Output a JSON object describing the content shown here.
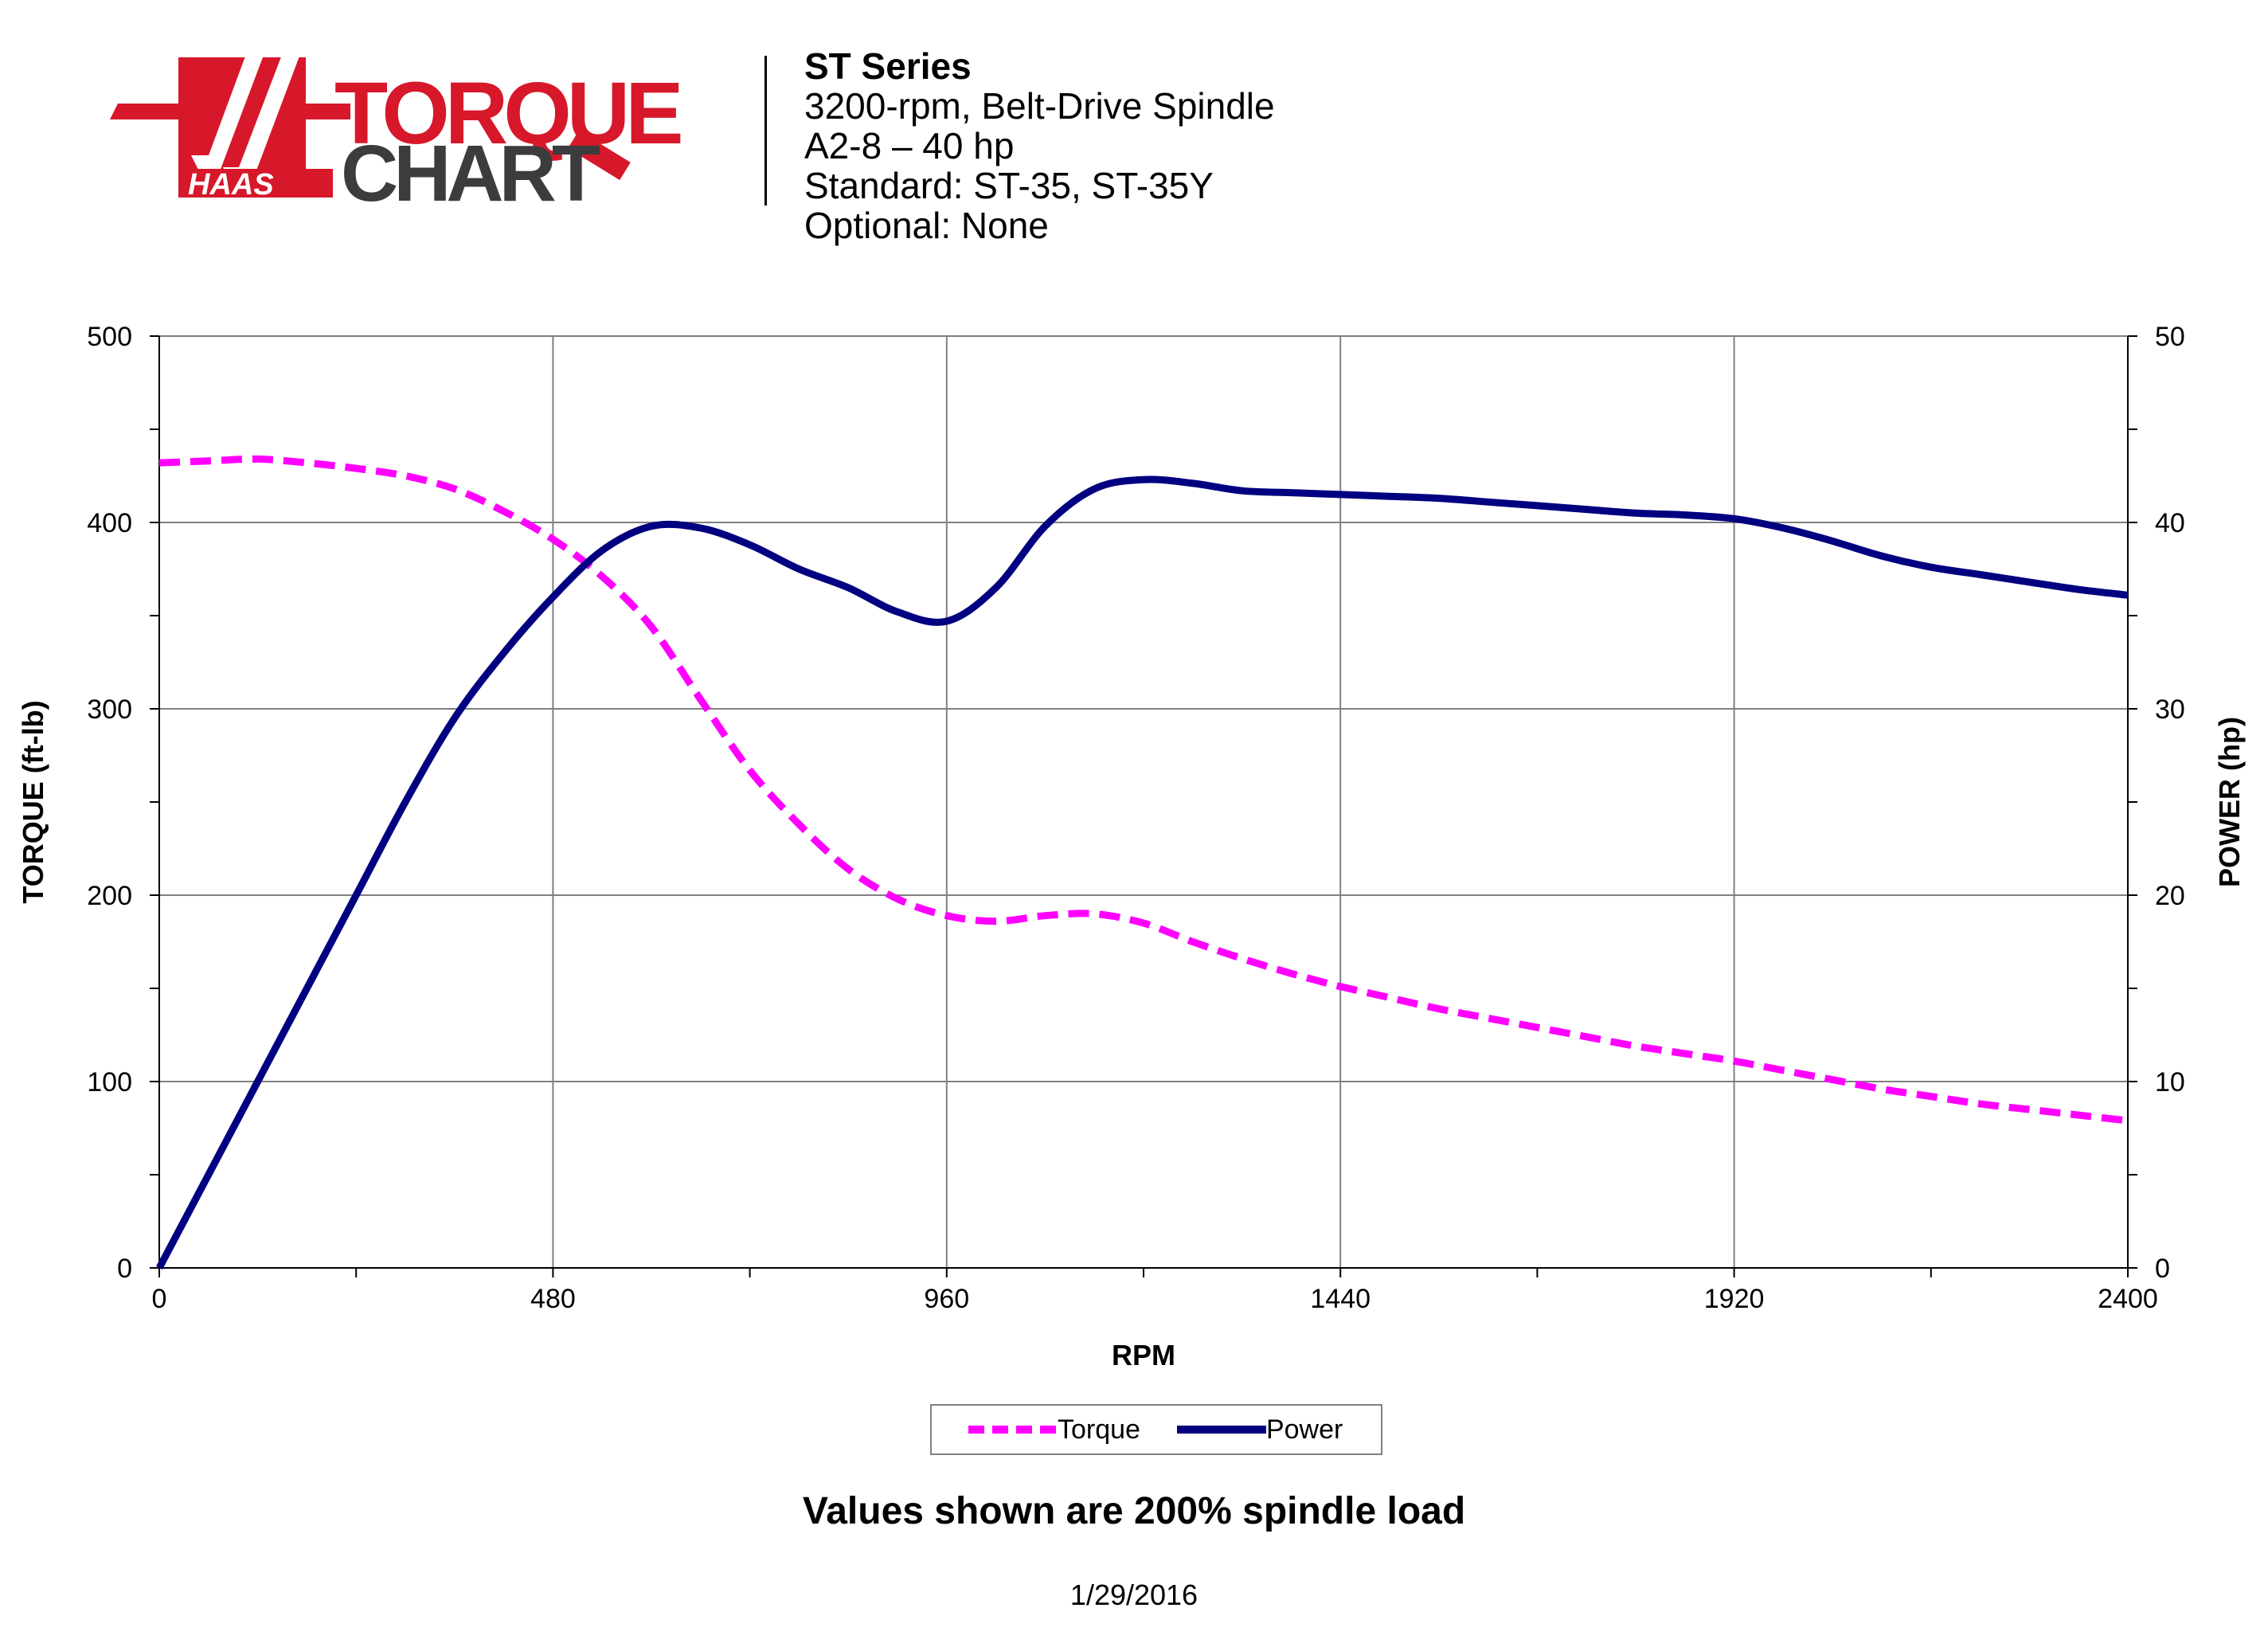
{
  "header": {
    "logo_text": "HAAS TORQUE CHART",
    "series": "ST Series",
    "lines": [
      "3200-rpm, Belt-Drive Spindle",
      "A2-8 – 40 hp",
      "Standard: ST-35, ST-35Y",
      "Optional: None"
    ]
  },
  "footnote": "Values shown are 200% spindle load",
  "date": "1/29/2016",
  "colors": {
    "torque": "#ff00ff",
    "power": "#000080",
    "logo_red": "#d7182a",
    "logo_dark": "#3c3c3e",
    "grid": "#808080"
  },
  "chart_data": {
    "type": "line",
    "xlabel": "RPM",
    "ylabel": "TORQUE (ft-lb)",
    "y2label": "POWER (hp)",
    "xlim": [
      0,
      2400
    ],
    "ylim": [
      0,
      500
    ],
    "y2lim": [
      0,
      50
    ],
    "xticks": [
      0,
      480,
      960,
      1440,
      1920,
      2400
    ],
    "yticks": [
      0,
      100,
      200,
      300,
      400,
      500
    ],
    "y2ticks": [
      0,
      10,
      20,
      30,
      40,
      50
    ],
    "grid": true,
    "legend": "bottom-center",
    "series": [
      {
        "name": "Torque",
        "axis": "left",
        "style": "dashed",
        "x": [
          0,
          60,
          120,
          180,
          240,
          300,
          360,
          420,
          480,
          540,
          600,
          660,
          720,
          780,
          840,
          900,
          960,
          1020,
          1080,
          1140,
          1200,
          1260,
          1320,
          1380,
          1440,
          1500,
          1560,
          1620,
          1680,
          1740,
          1800,
          1860,
          1920,
          1980,
          2040,
          2100,
          2160,
          2220,
          2280,
          2340,
          2400
        ],
        "values": [
          432,
          433,
          434,
          432,
          429,
          425,
          418,
          406,
          391,
          371,
          344,
          305,
          267,
          238,
          214,
          198,
          189,
          186,
          189,
          190,
          185,
          175,
          166,
          158,
          151,
          145,
          139,
          134,
          129,
          124,
          119,
          115,
          111,
          106,
          101,
          96,
          92,
          88,
          85,
          82,
          79
        ]
      },
      {
        "name": "Power",
        "axis": "right",
        "style": "solid",
        "x": [
          0,
          60,
          120,
          180,
          240,
          300,
          360,
          420,
          480,
          540,
          600,
          660,
          720,
          780,
          840,
          900,
          960,
          1020,
          1080,
          1140,
          1200,
          1260,
          1320,
          1380,
          1440,
          1500,
          1560,
          1620,
          1680,
          1740,
          1800,
          1860,
          1920,
          1980,
          2040,
          2100,
          2160,
          2220,
          2280,
          2340,
          2400
        ],
        "values": [
          0,
          5,
          10,
          15,
          20,
          25,
          29.5,
          33,
          36,
          38.5,
          39.8,
          39.7,
          38.8,
          37.5,
          36.5,
          35.2,
          34.7,
          36.5,
          39.8,
          41.8,
          42.3,
          42.1,
          41.7,
          41.6,
          41.5,
          41.4,
          41.3,
          41.1,
          40.9,
          40.7,
          40.5,
          40.4,
          40.2,
          39.7,
          39,
          38.2,
          37.6,
          37.2,
          36.8,
          36.4,
          36.1
        ]
      }
    ]
  }
}
